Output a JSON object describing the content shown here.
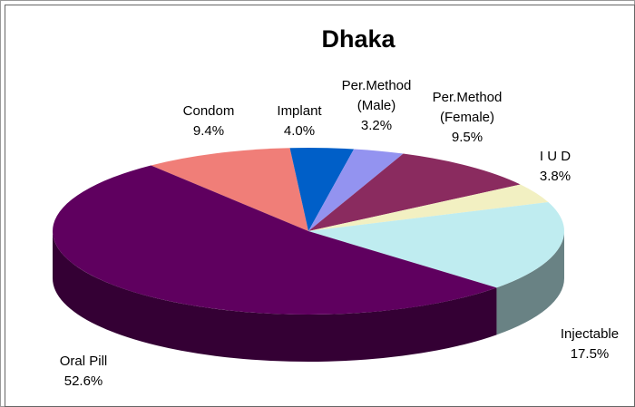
{
  "chart_data": {
    "type": "pie3d",
    "title": "Dhaka",
    "categories": [
      "Condom",
      "Implant",
      "Per.Method\n(Male)",
      "Per.Method\n(Female)",
      "I U D",
      "Injectable",
      "Oral Pill"
    ],
    "values": [
      9.4,
      4.0,
      3.2,
      9.5,
      3.8,
      17.5,
      52.6
    ],
    "value_labels": [
      "9.4%",
      "4.0%",
      "3.2%",
      "9.5%",
      "3.8%",
      "17.5%",
      "52.6%"
    ],
    "colors": [
      "#f07e78",
      "#005fc8",
      "#9393f0",
      "#8a2b5f",
      "#f2f0c2",
      "#bfecf0",
      "#5f005f"
    ]
  }
}
